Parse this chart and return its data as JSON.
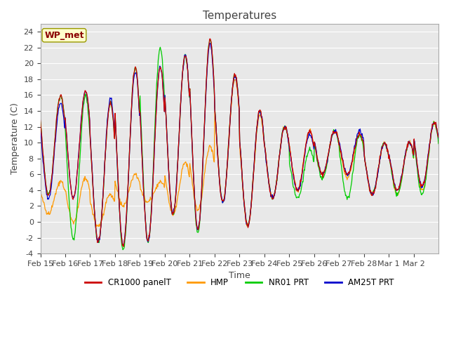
{
  "title": "Temperatures",
  "xlabel": "Time",
  "ylabel": "Temperature (C)",
  "ylim": [
    -4,
    25
  ],
  "yticks": [
    -4,
    -2,
    0,
    2,
    4,
    6,
    8,
    10,
    12,
    14,
    16,
    18,
    20,
    22,
    24
  ],
  "xtick_labels": [
    "Feb 15",
    "Feb 16",
    "Feb 17",
    "Feb 18",
    "Feb 19",
    "Feb 20",
    "Feb 21",
    "Feb 22",
    "Feb 23",
    "Feb 24",
    "Feb 25",
    "Feb 26",
    "Feb 27",
    "Feb 28",
    "Mar 1",
    "Mar 2"
  ],
  "series_colors": {
    "CR1000 panelT": "#cc0000",
    "HMP": "#ff9900",
    "NR01 PRT": "#00cc00",
    "AM25T PRT": "#0000cc"
  },
  "annotation_text": "WP_met",
  "annotation_color": "#8b0000",
  "annotation_bg": "#ffffcc",
  "background_color": "#ffffff",
  "plot_bg": "#e8e8e8",
  "grid_color": "#ffffff",
  "title_fontsize": 11,
  "axis_fontsize": 9,
  "tick_fontsize": 8,
  "n_days": 16,
  "n_per_day": 48,
  "cr1000_peaks": [
    16.0,
    16.5,
    15.0,
    19.5,
    19.5,
    21.0,
    23.0,
    18.5,
    14.0,
    12.0,
    11.5,
    11.5,
    11.0,
    10.0,
    10.0,
    12.5
  ],
  "cr1000_troughs": [
    3.5,
    3.0,
    -2.5,
    -3.0,
    -2.5,
    1.0,
    -1.0,
    2.5,
    -0.5,
    3.0,
    4.0,
    6.0,
    6.0,
    3.5,
    4.0,
    4.5
  ],
  "hmp_peaks": [
    5.0,
    5.5,
    3.5,
    6.0,
    5.0,
    7.5,
    9.5,
    18.0,
    13.5,
    12.0,
    11.5,
    11.5,
    11.0,
    10.0,
    10.0,
    12.5
  ],
  "hmp_troughs": [
    1.0,
    0.0,
    -0.5,
    2.0,
    2.5,
    1.0,
    1.5,
    2.5,
    -0.5,
    3.0,
    4.0,
    6.0,
    5.5,
    3.5,
    3.5,
    4.0
  ],
  "nr01_peaks": [
    16.0,
    16.0,
    15.0,
    19.5,
    22.0,
    21.0,
    23.0,
    18.5,
    14.0,
    12.0,
    9.0,
    11.5,
    11.0,
    10.0,
    10.0,
    12.5
  ],
  "nr01_troughs": [
    3.5,
    -2.2,
    -2.5,
    -3.5,
    -2.5,
    1.0,
    -1.5,
    2.5,
    -0.5,
    3.0,
    3.0,
    5.5,
    3.0,
    3.5,
    3.5,
    3.5
  ],
  "am25t_peaks": [
    15.0,
    16.5,
    15.5,
    19.0,
    19.5,
    21.0,
    22.5,
    18.5,
    14.0,
    12.0,
    11.0,
    11.5,
    11.5,
    10.0,
    10.0,
    12.5
  ],
  "am25t_troughs": [
    3.0,
    3.0,
    -2.5,
    -3.0,
    -2.5,
    1.0,
    -1.0,
    2.5,
    -0.5,
    3.0,
    4.0,
    6.0,
    6.0,
    3.5,
    4.0,
    4.5
  ]
}
